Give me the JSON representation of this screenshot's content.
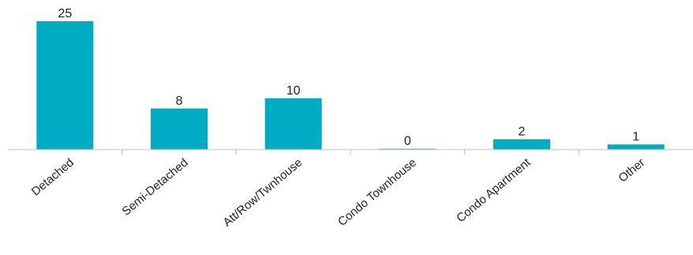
{
  "chart_data": {
    "type": "bar",
    "categories": [
      "Detached",
      "Semi-Detached",
      "Att/Row/Twnhouse",
      "Condo Townhouse",
      "Condo Apartment",
      "Other"
    ],
    "values": [
      25,
      8,
      10,
      0,
      2,
      1
    ],
    "data_labels": [
      "25",
      "8",
      "10",
      "0",
      "2",
      "1"
    ],
    "title": "",
    "xlabel": "",
    "ylabel": "",
    "ylim": [
      0,
      25
    ],
    "grid": false,
    "legend": "none",
    "colors": {
      "bar": "#00acc1",
      "axis": "#bfbfbf",
      "text": "#222222"
    }
  }
}
